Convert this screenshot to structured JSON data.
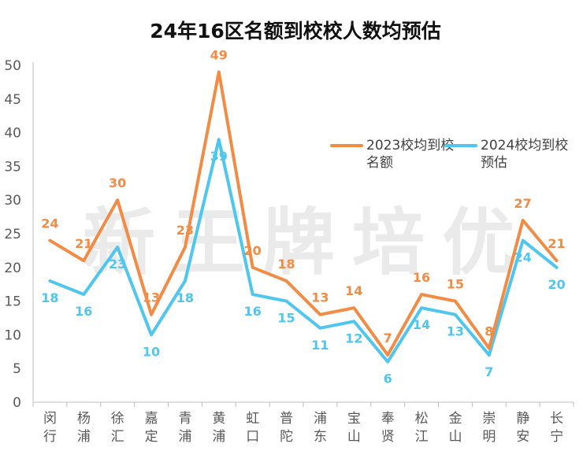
{
  "chart_data": {
    "type": "line",
    "title": "24年16区名额到校校人数均预估",
    "categories": [
      "闵\n行",
      "杨\n浦",
      "徐\n汇",
      "嘉\n定",
      "青\n浦",
      "黄\n浦",
      "虹\n口",
      "普\n陀",
      "浦\n东",
      "宝\n山",
      "奉\n贤",
      "松\n江",
      "金\n山",
      "崇\n明",
      "静\n安",
      "长\n宁"
    ],
    "series": [
      {
        "name": "2023校均到校名额",
        "color": "#F28C45",
        "values": [
          24,
          21,
          30,
          13,
          23,
          49,
          20,
          18,
          13,
          14,
          7,
          16,
          15,
          8,
          27,
          21
        ]
      },
      {
        "name": "2024校均到校预估",
        "color": "#4FC6EE",
        "values": [
          18,
          16,
          23,
          10,
          18,
          39,
          16,
          15,
          11,
          12,
          6,
          14,
          13,
          7,
          24,
          20
        ]
      }
    ],
    "ylim": [
      0,
      50
    ],
    "yticks": [
      0,
      5,
      10,
      15,
      20,
      25,
      30,
      35,
      40,
      45,
      50
    ],
    "grid": false,
    "legend_position": "right-middle",
    "watermark": "新王牌培优"
  }
}
